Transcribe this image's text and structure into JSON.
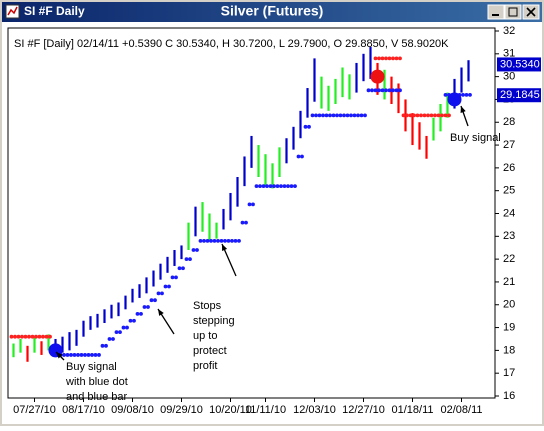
{
  "window_title": "SI #F Daily",
  "chart_data": {
    "type": "hlc-bars",
    "title": "Silver (Futures)",
    "header": "SI #F [Daily] 02/14/11  +0.5390 C 30.5340, H 30.7200, L 29.7900, O 29.8850, V 58.9020K",
    "categories": [
      null,
      null,
      null,
      "07/27/10",
      null,
      null,
      null,
      null,
      null,
      null,
      "08/17/10",
      null,
      null,
      null,
      null,
      null,
      null,
      "09/08/10",
      null,
      null,
      null,
      null,
      null,
      null,
      "09/29/10",
      null,
      null,
      null,
      null,
      null,
      null,
      "10/20/10",
      null,
      null,
      null,
      null,
      "11/11/10",
      null,
      null,
      null,
      null,
      null,
      null,
      "12/03/10",
      null,
      null,
      null,
      null,
      null,
      null,
      "12/27/10",
      null,
      null,
      null,
      null,
      null,
      null,
      "01/18/11",
      null,
      null,
      null,
      null,
      null,
      null,
      "02/08/11",
      null
    ],
    "high": [
      18.3,
      18.5,
      18.2,
      18.6,
      18.4,
      18.7,
      18.5,
      18.6,
      18.8,
      18.9,
      19.3,
      19.5,
      19.6,
      19.8,
      20.0,
      20.1,
      20.4,
      20.7,
      20.9,
      21.2,
      21.5,
      21.8,
      22.1,
      22.4,
      22.6,
      23.6,
      24.3,
      24.5,
      24.0,
      23.6,
      24.2,
      24.9,
      25.6,
      26.5,
      27.4,
      27.0,
      26.6,
      26.2,
      26.9,
      27.3,
      27.8,
      28.5,
      29.5,
      30.8,
      30.0,
      29.6,
      29.9,
      30.4,
      30.1,
      30.6,
      31.0,
      31.3,
      30.6,
      30.3,
      30.0,
      29.7,
      29.0,
      28.4,
      28.0,
      27.4,
      28.2,
      28.8,
      29.3,
      29.9,
      30.4,
      30.72
    ],
    "low": [
      17.7,
      17.9,
      17.5,
      17.9,
      17.8,
      18.0,
      17.8,
      17.9,
      18.0,
      18.2,
      18.6,
      18.9,
      19.0,
      19.2,
      19.4,
      19.5,
      19.8,
      20.1,
      20.3,
      20.5,
      20.8,
      21.1,
      21.4,
      21.7,
      22.0,
      22.4,
      23.0,
      23.2,
      22.8,
      22.9,
      23.3,
      23.7,
      24.3,
      25.2,
      26.0,
      25.6,
      25.2,
      25.1,
      25.6,
      26.2,
      26.8,
      27.3,
      28.2,
      28.9,
      28.6,
      28.5,
      28.8,
      29.1,
      29.0,
      29.3,
      29.8,
      29.9,
      29.2,
      29.0,
      28.8,
      28.4,
      27.6,
      27.0,
      26.8,
      26.4,
      27.2,
      27.6,
      28.2,
      28.6,
      29.3,
      29.79
    ],
    "signal": [
      "g",
      "g",
      "r",
      "g",
      "r",
      "g",
      "b",
      "b",
      "b",
      "b",
      "b",
      "b",
      "b",
      "b",
      "b",
      "b",
      "b",
      "b",
      "b",
      "b",
      "b",
      "b",
      "b",
      "b",
      "b",
      "g",
      "b",
      "g",
      "g",
      "g",
      "b",
      "b",
      "b",
      "b",
      "b",
      "g",
      "g",
      "g",
      "g",
      "b",
      "b",
      "b",
      "b",
      "b",
      "g",
      "g",
      "g",
      "g",
      "g",
      "b",
      "b",
      "b",
      "r",
      "g",
      "r",
      "r",
      "r",
      "r",
      "r",
      "r",
      "g",
      "g",
      "g",
      "b",
      "b",
      "b"
    ],
    "signal_colors": {
      "b": "#0000cc",
      "g": "#22ee22",
      "r": "#ff0000"
    },
    "long_stops": [
      null,
      null,
      null,
      null,
      null,
      null,
      17.8,
      17.8,
      17.8,
      17.8,
      17.8,
      17.8,
      17.8,
      18.2,
      18.5,
      18.8,
      19.0,
      19.3,
      19.6,
      19.9,
      20.2,
      20.5,
      20.8,
      21.2,
      21.6,
      22.0,
      22.4,
      22.8,
      22.8,
      22.8,
      22.8,
      22.8,
      22.8,
      23.6,
      24.4,
      25.2,
      25.2,
      25.2,
      25.2,
      25.2,
      25.2,
      26.5,
      27.8,
      28.3,
      28.3,
      28.3,
      28.3,
      28.3,
      28.3,
      28.3,
      28.3,
      29.4,
      29.4,
      29.4,
      29.4,
      29.4,
      null,
      null,
      null,
      null,
      null,
      null,
      29.2,
      29.2,
      29.2,
      29.2
    ],
    "short_stops": [
      18.6,
      18.6,
      18.6,
      18.6,
      18.6,
      18.6,
      null,
      null,
      null,
      null,
      null,
      null,
      null,
      null,
      null,
      null,
      null,
      null,
      null,
      null,
      null,
      null,
      null,
      null,
      null,
      null,
      null,
      null,
      null,
      null,
      null,
      null,
      null,
      null,
      null,
      null,
      null,
      null,
      null,
      null,
      null,
      null,
      null,
      null,
      null,
      null,
      null,
      null,
      null,
      null,
      null,
      null,
      30.8,
      30.8,
      30.8,
      30.8,
      28.3,
      28.3,
      28.3,
      28.3,
      28.3,
      28.3,
      28.3,
      null,
      null,
      null
    ],
    "long_stop_color": "#1a1aff",
    "short_stop_color": "#ff2020",
    "signals": [
      {
        "index": 6,
        "value": 18.0,
        "color": "#1010ee"
      },
      {
        "index": 52,
        "value": 30.0,
        "color": "#ee1111"
      },
      {
        "index": 63,
        "value": 29.0,
        "color": "#1010ee"
      }
    ],
    "ylim": [
      16,
      32
    ],
    "yticks": [
      16,
      17,
      18,
      19,
      20,
      21,
      22,
      23,
      24,
      25,
      26,
      27,
      28,
      29,
      30,
      31,
      32
    ],
    "price_labels": [
      {
        "value": 30.534,
        "label": "30.5340"
      },
      {
        "value": 29.1845,
        "label": "29.1845"
      }
    ],
    "annotations": [
      {
        "lines": [
          "Buy signal",
          "with blue dot",
          "and blue bar"
        ]
      },
      {
        "lines": [
          "Stops",
          "stepping",
          "up to",
          "protect",
          "profit"
        ]
      },
      {
        "lines": [
          "Buy signal"
        ]
      }
    ]
  }
}
